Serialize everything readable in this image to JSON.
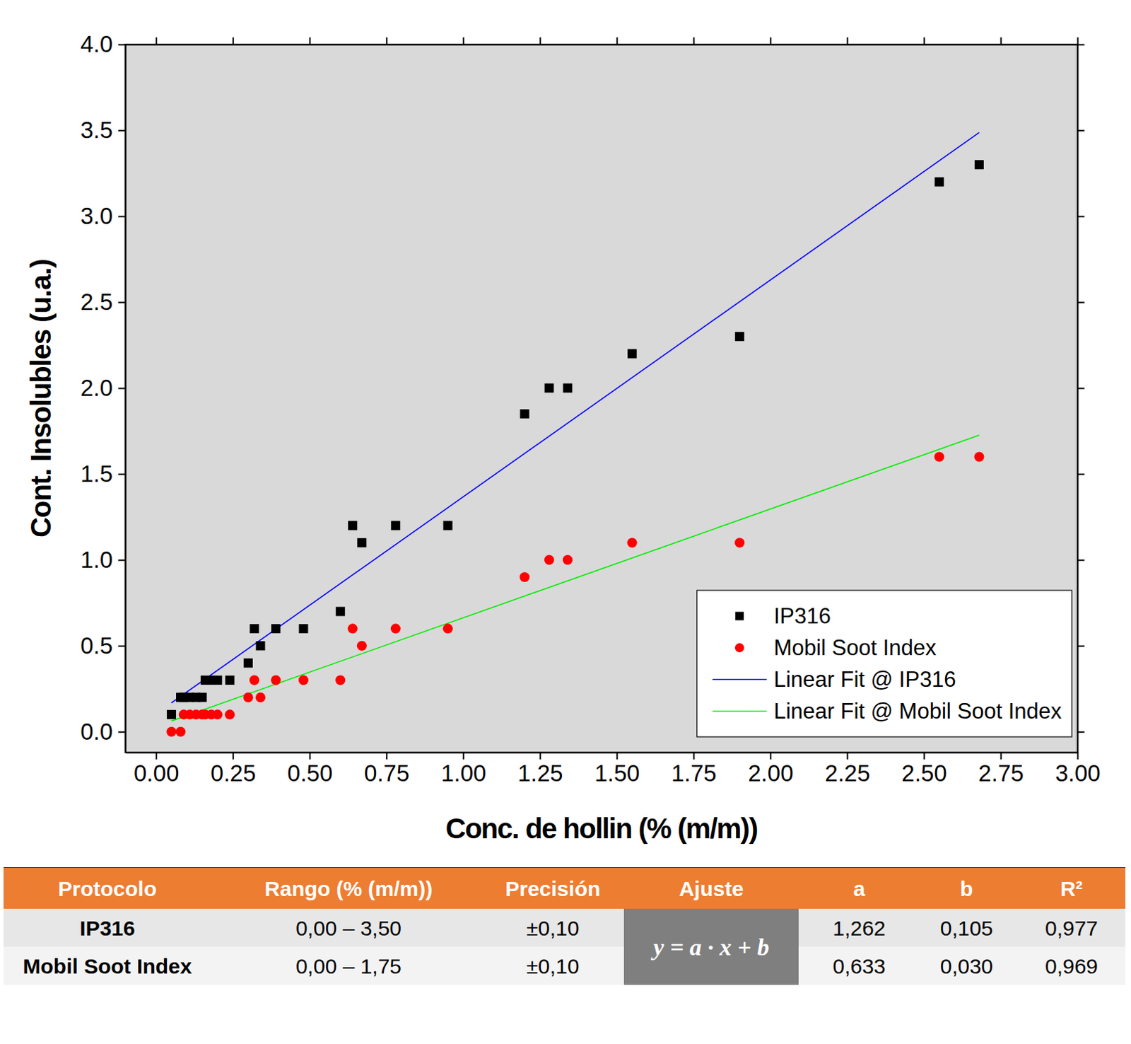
{
  "chart_data": {
    "type": "scatter",
    "x_label": "Conc. de hollin (% (m/m))",
    "y_label": "Cont. Insolubles (u.a.)",
    "xlim": [
      -0.1,
      3.0
    ],
    "ylim": [
      -0.12,
      4.0
    ],
    "xticks": [
      {
        "value": 0,
        "label": "0.00"
      },
      {
        "value": 0.25,
        "label": "0.25"
      },
      {
        "value": 0.5,
        "label": "0.50"
      },
      {
        "value": 0.75,
        "label": "0.75"
      },
      {
        "value": 1,
        "label": "1.00"
      },
      {
        "value": 1.25,
        "label": "1.25"
      },
      {
        "value": 1.5,
        "label": "1.50"
      },
      {
        "value": 1.75,
        "label": "1.75"
      },
      {
        "value": 2,
        "label": "2.00"
      },
      {
        "value": 2.25,
        "label": "2.25"
      },
      {
        "value": 2.5,
        "label": "2.50"
      },
      {
        "value": 2.75,
        "label": "2.75"
      },
      {
        "value": 3,
        "label": "3.00"
      }
    ],
    "yticks": [
      {
        "value": 0,
        "label": "0.0"
      },
      0.5,
      {
        "value": 1,
        "label": "1.0"
      },
      1.5,
      {
        "value": 2,
        "label": "2.0"
      },
      2.5,
      {
        "value": 3,
        "label": "3.0"
      },
      3.5,
      {
        "value": 4,
        "label": "4.0"
      }
    ],
    "grid": false,
    "legend": "bottom-right",
    "series": [
      {
        "name": "IP316",
        "type": "scatter",
        "marker": "square",
        "color": "#000000",
        "x": [
          0.05,
          0.08,
          0.09,
          0.11,
          0.13,
          0.15,
          0.16,
          0.18,
          0.2,
          0.24,
          0.3,
          0.32,
          0.34,
          0.39,
          0.48,
          0.6,
          0.64,
          0.67,
          0.78,
          0.95,
          1.2,
          1.28,
          1.34,
          1.55,
          1.9,
          2.55,
          2.68
        ],
        "values": [
          0.1,
          0.2,
          0.2,
          0.2,
          0.2,
          0.2,
          0.3,
          0.3,
          0.3,
          0.3,
          0.4,
          0.6,
          0.5,
          0.6,
          0.6,
          0.7,
          1.2,
          1.1,
          1.2,
          1.2,
          1.85,
          2.0,
          2.0,
          2.2,
          2.3,
          3.2,
          3.3
        ]
      },
      {
        "name": "Mobil Soot Index",
        "type": "scatter",
        "marker": "circle",
        "color": "#ff0000",
        "x": [
          0.05,
          0.08,
          0.09,
          0.11,
          0.13,
          0.15,
          0.16,
          0.18,
          0.2,
          0.24,
          0.3,
          0.32,
          0.34,
          0.39,
          0.48,
          0.6,
          0.64,
          0.67,
          0.78,
          0.95,
          1.2,
          1.28,
          1.34,
          1.55,
          1.9,
          2.55,
          2.68
        ],
        "values": [
          0.0,
          0.0,
          0.1,
          0.1,
          0.1,
          0.1,
          0.1,
          0.1,
          0.1,
          0.1,
          0.2,
          0.3,
          0.2,
          0.3,
          0.3,
          0.3,
          0.6,
          0.5,
          0.6,
          0.6,
          0.9,
          1.0,
          1.0,
          1.1,
          1.1,
          1.6,
          1.6
        ]
      },
      {
        "name": "Linear Fit @ IP316",
        "type": "line",
        "line_style": "solid",
        "color": "#0000ff",
        "x": [
          0.05,
          2.68
        ],
        "values": [
          0.168,
          3.487
        ]
      },
      {
        "name": "Linear Fit @ Mobil Soot Index",
        "type": "line",
        "line_style": "solid",
        "color": "#00ee00",
        "x": [
          0.05,
          2.68
        ],
        "values": [
          0.062,
          1.726
        ]
      }
    ]
  },
  "table": {
    "columns": [
      "Protocolo",
      "Rango (% (m/m))",
      "Precisión",
      "Ajuste",
      "a",
      "b",
      "R²"
    ],
    "fit": "y = a · x + b",
    "rows": [
      [
        "IP316",
        "0,00 – 3,50",
        "±0,10",
        "1,262",
        "0,105",
        "0,977"
      ],
      [
        "Mobil Soot Index",
        "0,00 – 1,75",
        "±0,10",
        "0,633",
        "0,030",
        "0,969"
      ]
    ]
  }
}
